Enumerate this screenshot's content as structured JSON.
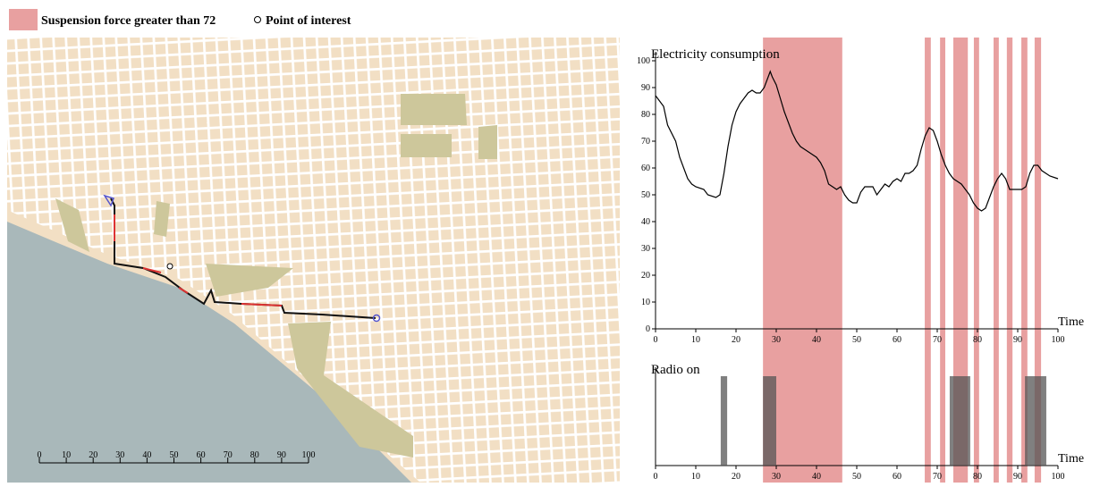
{
  "legend": {
    "highlight": "Suspension force greater than 72",
    "poi": "Point of interest"
  },
  "highlight_color": "#e8a0a0",
  "highlight_intervals": [
    [
      26.7,
      46.4
    ],
    [
      66.9,
      68.4
    ],
    [
      70.7,
      72
    ],
    [
      74,
      77.6
    ],
    [
      79.1,
      80.4
    ],
    [
      84,
      85.3
    ],
    [
      87.3,
      88.7
    ],
    [
      90.9,
      92.4
    ],
    [
      94.2,
      95.8
    ]
  ],
  "map": {
    "scale_ticks": [
      0,
      10,
      20,
      30,
      40,
      50,
      60,
      70,
      80,
      90,
      100
    ]
  },
  "chart_data": [
    {
      "type": "line",
      "title": "Electricity consumption",
      "x_label": "Time",
      "color": "#000000",
      "x": [
        0,
        2,
        3,
        5,
        6,
        7,
        8,
        9,
        10,
        12,
        13,
        15,
        16,
        17,
        18,
        19,
        20,
        21,
        22,
        23,
        24,
        25,
        26,
        27,
        28,
        28.5,
        29,
        30,
        31,
        32,
        33,
        34,
        35,
        36,
        37,
        38,
        39,
        40,
        41,
        42,
        43,
        44,
        45,
        46,
        47,
        48,
        49,
        50,
        51,
        52,
        53,
        54,
        55,
        56,
        57,
        58,
        59,
        60,
        61,
        62,
        63,
        64,
        65,
        66,
        67,
        68,
        69,
        70,
        71,
        72,
        73,
        74,
        75,
        76,
        77,
        78,
        79,
        80,
        81,
        82,
        83,
        84,
        85,
        86,
        87,
        88,
        89,
        90,
        91,
        92,
        93,
        94,
        95,
        96,
        97,
        98,
        100
      ],
      "values": [
        87,
        83,
        76,
        70,
        64,
        60,
        56,
        54,
        53,
        52,
        50,
        49,
        50,
        58,
        68,
        76,
        81,
        84,
        86,
        88,
        89,
        88,
        88,
        90,
        94,
        96,
        94,
        91,
        86,
        81,
        77,
        73,
        70,
        68,
        67,
        66,
        65,
        64,
        62,
        59,
        54,
        53,
        52,
        53,
        50,
        48,
        47,
        47,
        51,
        53,
        53,
        53,
        50,
        52,
        54,
        53,
        55,
        56,
        55,
        58,
        58,
        59,
        61,
        67,
        72,
        75,
        74,
        70,
        65,
        61,
        58,
        56,
        55,
        54,
        52,
        50,
        47,
        45,
        44,
        45,
        49,
        53,
        56,
        58,
        56,
        52,
        52,
        52,
        52,
        53,
        58,
        61,
        61,
        59,
        58,
        57,
        56
      ],
      "xlim": [
        0,
        100
      ],
      "ylim": [
        0,
        100
      ],
      "xticks": [
        0,
        10,
        20,
        30,
        40,
        50,
        60,
        70,
        80,
        90,
        100
      ],
      "yticks": [
        0,
        10,
        20,
        30,
        40,
        50,
        60,
        70,
        80,
        90,
        100
      ]
    },
    {
      "type": "interval",
      "title": "Radio on",
      "x_label": "Time",
      "color": "#555555",
      "intervals": [
        [
          16.2,
          17.8
        ],
        [
          26.7,
          30
        ],
        [
          73.1,
          78.2
        ],
        [
          91.8,
          97.1
        ]
      ],
      "xlim": [
        0,
        100
      ],
      "xticks": [
        0,
        10,
        20,
        30,
        40,
        50,
        60,
        70,
        80,
        90,
        100
      ]
    }
  ]
}
